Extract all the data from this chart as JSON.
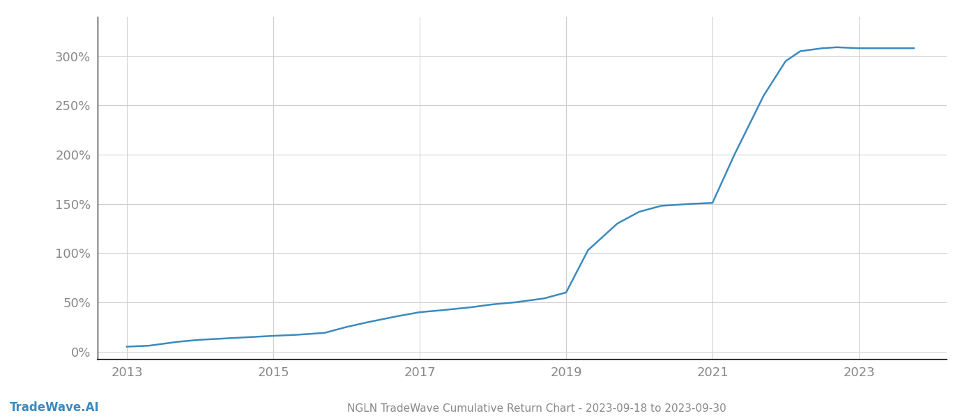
{
  "title": "NGLN TradeWave Cumulative Return Chart - 2023-09-18 to 2023-09-30",
  "watermark": "TradeWave.AI",
  "line_color": "#3a8abf",
  "line_width": 1.8,
  "background_color": "#ffffff",
  "grid_color": "#cccccc",
  "x_years": [
    2013.0,
    2013.3,
    2013.7,
    2014.0,
    2014.5,
    2015.0,
    2015.3,
    2015.7,
    2016.0,
    2016.3,
    2016.7,
    2017.0,
    2017.3,
    2017.7,
    2018.0,
    2018.3,
    2018.5,
    2018.7,
    2019.0,
    2019.3,
    2019.7,
    2020.0,
    2020.3,
    2020.7,
    2021.0,
    2021.3,
    2021.7,
    2022.0,
    2022.2,
    2022.5,
    2022.7,
    2023.0,
    2023.5,
    2023.75
  ],
  "y_values": [
    5,
    6,
    10,
    12,
    14,
    16,
    17,
    19,
    25,
    30,
    36,
    40,
    42,
    45,
    48,
    50,
    52,
    54,
    60,
    103,
    130,
    142,
    148,
    150,
    151,
    200,
    260,
    295,
    305,
    308,
    309,
    308,
    308,
    308
  ],
  "yticks": [
    0,
    50,
    100,
    150,
    200,
    250,
    300
  ],
  "xticks": [
    2013,
    2015,
    2017,
    2019,
    2021,
    2023
  ],
  "ylim": [
    -8,
    340
  ],
  "xlim": [
    2012.6,
    2024.2
  ],
  "tick_fontsize": 13,
  "tick_color": "#888888",
  "spine_color": "#333333",
  "title_fontsize": 11,
  "watermark_fontsize": 12,
  "watermark_color": "#3a8abf"
}
